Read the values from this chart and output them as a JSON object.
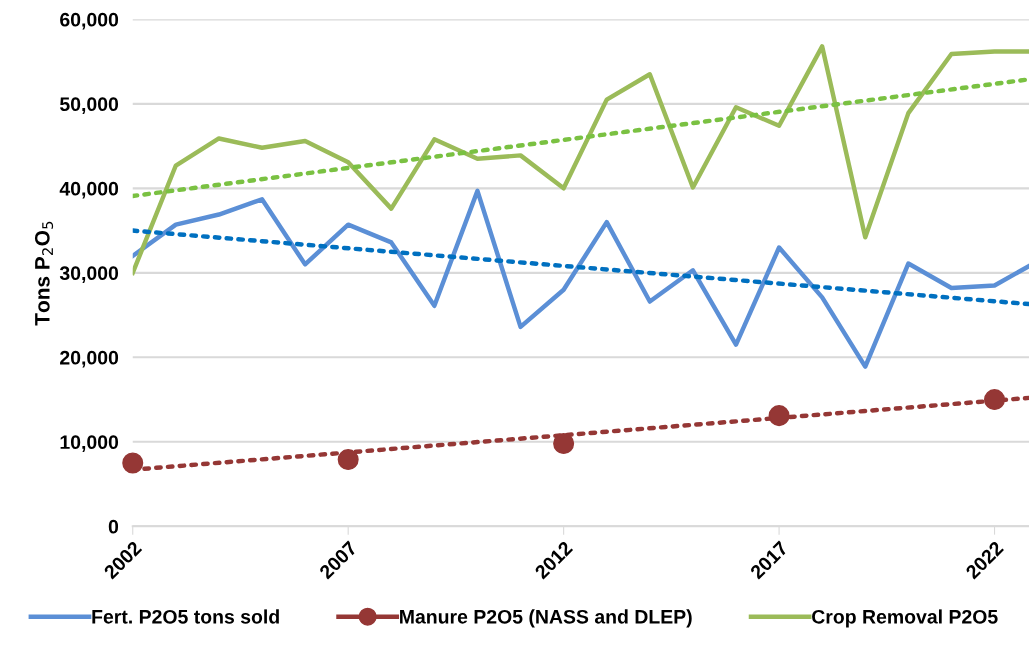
{
  "chart_data": {
    "type": "line",
    "ylabel": "Tons P$_{2}$O$_{5}$",
    "xlim": [
      2002,
      2022.8
    ],
    "xticks": [
      2002,
      2007,
      2012,
      2017,
      2022
    ],
    "ylim": [
      0,
      60000
    ],
    "yticks": [
      {
        "value": 0,
        "label": "0"
      },
      {
        "value": 10000,
        "label": "10,000"
      },
      {
        "value": 20000,
        "label": "20,000"
      },
      {
        "value": 30000,
        "label": "30,000"
      },
      {
        "value": 40000,
        "label": "40,000"
      },
      {
        "value": 50000,
        "label": "50,000"
      },
      {
        "value": 60000,
        "label": "60,000"
      }
    ],
    "grid": "y",
    "legend": "bottom",
    "series": [
      {
        "name": "Fert. P2O5 tons sold",
        "color": "#5b8fd6",
        "marker": "none",
        "line_style": "solid",
        "x": [
          2002,
          2003,
          2004,
          2005,
          2006,
          2007,
          2008,
          2009,
          2010,
          2011,
          2012,
          2013,
          2014,
          2015,
          2016,
          2017,
          2018,
          2019,
          2020,
          2021,
          2022,
          2022.8
        ],
        "values": [
          32000,
          35700,
          36900,
          38700,
          31000,
          35700,
          33600,
          26100,
          39700,
          23600,
          28000,
          36000,
          26600,
          30300,
          21500,
          33000,
          27100,
          18900,
          31100,
          28200,
          28500,
          30800
        ]
      },
      {
        "name": "Manure P2O5 (NASS and DLEP)",
        "type": "scatter",
        "color": "#953735",
        "marker": "circle",
        "x": [
          2002,
          2007,
          2012,
          2017,
          2022
        ],
        "values": [
          7500,
          7900,
          9800,
          13100,
          15000
        ]
      },
      {
        "name": "Crop Removal P2O5",
        "color": "#9bbb59",
        "marker": "none",
        "line_style": "solid",
        "x": [
          2002,
          2003,
          2004,
          2005,
          2006,
          2007,
          2008,
          2009,
          2010,
          2011,
          2012,
          2013,
          2014,
          2015,
          2016,
          2017,
          2018,
          2019,
          2020,
          2021,
          2022,
          2022.8
        ],
        "values": [
          30000,
          42700,
          45900,
          44800,
          45600,
          43100,
          37600,
          45800,
          43500,
          43900,
          40000,
          50500,
          53500,
          40100,
          49600,
          47400,
          56800,
          34200,
          48900,
          55900,
          56200,
          56200
        ]
      },
      {
        "color": "#0070c0",
        "marker": "none",
        "line_style": "dotted",
        "x": [
          2002,
          2022.8
        ],
        "values": [
          35000,
          26300
        ]
      },
      {
        "color": "#953735",
        "marker": "none",
        "line_style": "dotted",
        "x": [
          2002,
          2022.8
        ],
        "values": [
          6700,
          15200
        ]
      },
      {
        "color": "#7ac142",
        "marker": "none",
        "line_style": "dotted",
        "x": [
          2002,
          2022.8
        ],
        "values": [
          39100,
          52900
        ]
      }
    ]
  }
}
